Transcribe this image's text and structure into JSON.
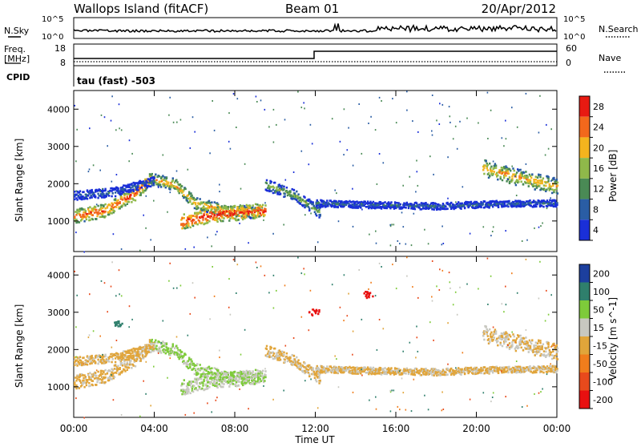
{
  "header": {
    "station": "Wallops Island (fitACF)",
    "beam": "Beam 01",
    "date": "20/Apr/2012"
  },
  "strips": {
    "nsky_label": "N.Sky",
    "nsky_top": "10^5",
    "nsky_bottom": "10^0",
    "nsearch_label": "N.Search",
    "nsearch_top": "10^5",
    "nsearch_bottom": "10^0",
    "freq_label": "Freq.",
    "freq_unit": "[MHz]",
    "freq_ticks": [
      "18",
      "8"
    ],
    "nave_label": "Nave",
    "nave_ticks": [
      "60",
      "0"
    ],
    "cpid_label": "CPID",
    "cpid_text": "tau (fast) -503"
  },
  "chart_data": {
    "type": "heatmap",
    "x_ticks": [
      "00:00",
      "04:00",
      "08:00",
      "12:00",
      "16:00",
      "20:00",
      "00:00"
    ],
    "xlabel": "Time UT",
    "y_ticks": [
      "1000",
      "2000",
      "3000",
      "4000"
    ],
    "ylabel": "Slant Range [km]",
    "y_range": [
      180,
      4500
    ],
    "panels": [
      {
        "name": "power",
        "colorbar_label": "Power [dB]",
        "colorbar_ticks": [
          "28",
          "24",
          "20",
          "16",
          "12",
          "8",
          "4"
        ],
        "colors": [
          "#e81a12",
          "#f2681c",
          "#f4b41e",
          "#8fb84a",
          "#4a8a55",
          "#2a5da4",
          "#1a2fd8"
        ]
      },
      {
        "name": "velocity",
        "colorbar_label": "Velocity [m s^-1]",
        "colorbar_ticks": [
          "200",
          "100",
          "50",
          "15",
          "-15",
          "-50",
          "-100",
          "-200"
        ],
        "colors": [
          "#1c3f9e",
          "#2f7f6c",
          "#7ecb3a",
          "#c8c8c0",
          "#e1a53a",
          "#f07d1c",
          "#e84a1c",
          "#e81010"
        ]
      }
    ],
    "echo_bands": [
      {
        "t": [
          0.0,
          1.5,
          3.0,
          3.8
        ],
        "r": [
          1150,
          1300,
          1750,
          2150
        ],
        "width": 180,
        "power": 26,
        "velocity": -8
      },
      {
        "t": [
          3.8,
          5.0,
          6.0,
          7.5,
          9.2
        ],
        "r": [
          2150,
          2000,
          1500,
          1300,
          1250
        ],
        "width": 160,
        "power": 22,
        "velocity": 40
      },
      {
        "t": [
          5.3,
          7.0,
          9.5
        ],
        "r": [
          1000,
          1200,
          1300
        ],
        "width": 200,
        "power": 28,
        "velocity": 25
      },
      {
        "t": [
          9.5,
          11.0,
          12.2
        ],
        "r": [
          2000,
          1700,
          1250
        ],
        "width": 150,
        "power": 16,
        "velocity": -5
      },
      {
        "t": [
          12.0,
          15.0,
          18.0,
          21.0,
          24.0
        ],
        "r": [
          1500,
          1450,
          1420,
          1480,
          1500
        ],
        "width": 90,
        "power": 10,
        "velocity": -5
      },
      {
        "t": [
          20.3,
          22.0,
          24.0
        ],
        "r": [
          2450,
          2200,
          1950
        ],
        "width": 220,
        "power": 22,
        "velocity": 0
      },
      {
        "t": [
          0.0,
          2.0,
          4.0
        ],
        "r": [
          1700,
          1800,
          2100
        ],
        "width": 120,
        "power": 10,
        "velocity": -10
      }
    ],
    "velocity_patches": [
      {
        "t": 11.9,
        "r": 3020,
        "velocity": -210
      },
      {
        "t": 14.6,
        "r": 3500,
        "velocity": -210
      },
      {
        "t": 2.2,
        "r": 2700,
        "velocity": 110
      }
    ]
  }
}
